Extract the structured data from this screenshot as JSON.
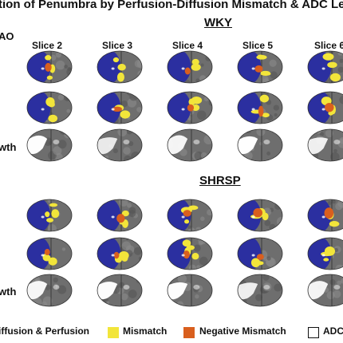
{
  "title": "tion of Penumbra by Perfusion-Diffusion Mismatch & ADC Les",
  "groups": [
    {
      "label": "WKY"
    },
    {
      "label": "SHRSP"
    }
  ],
  "row_labels": [
    "AO",
    "wth",
    "wth"
  ],
  "slices": [
    "Slice 2",
    "Slice 3",
    "Slice 4",
    "Slice 5",
    "Slice 6"
  ],
  "legend": [
    {
      "label": "iffusion & Perfusion",
      "color": "#2b2fa0"
    },
    {
      "label": "Mismatch",
      "color": "#f2e53a"
    },
    {
      "label": "Negative Mismatch",
      "color": "#d95f1e"
    },
    {
      "label": "ADC",
      "color": "#ffffff"
    }
  ],
  "colors": {
    "lesion": "#2b2fa0",
    "mismatch": "#f2e53a",
    "negative_mismatch": "#d95f1e",
    "tissue": "#6e6e6e",
    "background": "#ffffff"
  }
}
